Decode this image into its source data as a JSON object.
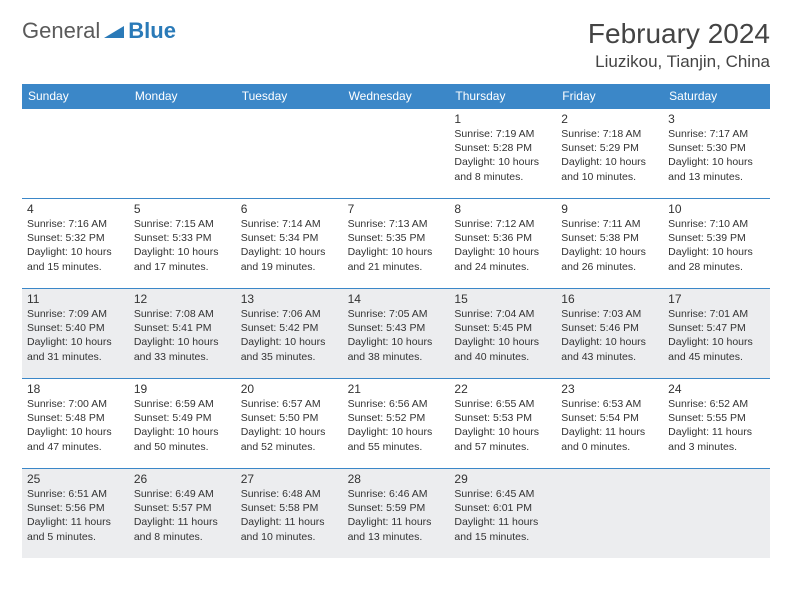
{
  "brand": {
    "part1": "General",
    "part2": "Blue"
  },
  "title": {
    "monthYear": "February 2024",
    "location": "Liuzikou, Tianjin, China"
  },
  "colors": {
    "headerBg": "#3b87c8",
    "altRowBg": "#ecedef",
    "text": "#333333",
    "brandGray": "#5a5a5a",
    "brandBlue": "#2a7ab8"
  },
  "weekdays": [
    "Sunday",
    "Monday",
    "Tuesday",
    "Wednesday",
    "Thursday",
    "Friday",
    "Saturday"
  ],
  "grid": {
    "startOffset": 4,
    "rows": 5,
    "cols": 7,
    "altRows": [
      2,
      4
    ]
  },
  "days": [
    {
      "n": 1,
      "sunrise": "7:19 AM",
      "sunset": "5:28 PM",
      "daylight": "10 hours and 8 minutes."
    },
    {
      "n": 2,
      "sunrise": "7:18 AM",
      "sunset": "5:29 PM",
      "daylight": "10 hours and 10 minutes."
    },
    {
      "n": 3,
      "sunrise": "7:17 AM",
      "sunset": "5:30 PM",
      "daylight": "10 hours and 13 minutes."
    },
    {
      "n": 4,
      "sunrise": "7:16 AM",
      "sunset": "5:32 PM",
      "daylight": "10 hours and 15 minutes."
    },
    {
      "n": 5,
      "sunrise": "7:15 AM",
      "sunset": "5:33 PM",
      "daylight": "10 hours and 17 minutes."
    },
    {
      "n": 6,
      "sunrise": "7:14 AM",
      "sunset": "5:34 PM",
      "daylight": "10 hours and 19 minutes."
    },
    {
      "n": 7,
      "sunrise": "7:13 AM",
      "sunset": "5:35 PM",
      "daylight": "10 hours and 21 minutes."
    },
    {
      "n": 8,
      "sunrise": "7:12 AM",
      "sunset": "5:36 PM",
      "daylight": "10 hours and 24 minutes."
    },
    {
      "n": 9,
      "sunrise": "7:11 AM",
      "sunset": "5:38 PM",
      "daylight": "10 hours and 26 minutes."
    },
    {
      "n": 10,
      "sunrise": "7:10 AM",
      "sunset": "5:39 PM",
      "daylight": "10 hours and 28 minutes."
    },
    {
      "n": 11,
      "sunrise": "7:09 AM",
      "sunset": "5:40 PM",
      "daylight": "10 hours and 31 minutes."
    },
    {
      "n": 12,
      "sunrise": "7:08 AM",
      "sunset": "5:41 PM",
      "daylight": "10 hours and 33 minutes."
    },
    {
      "n": 13,
      "sunrise": "7:06 AM",
      "sunset": "5:42 PM",
      "daylight": "10 hours and 35 minutes."
    },
    {
      "n": 14,
      "sunrise": "7:05 AM",
      "sunset": "5:43 PM",
      "daylight": "10 hours and 38 minutes."
    },
    {
      "n": 15,
      "sunrise": "7:04 AM",
      "sunset": "5:45 PM",
      "daylight": "10 hours and 40 minutes."
    },
    {
      "n": 16,
      "sunrise": "7:03 AM",
      "sunset": "5:46 PM",
      "daylight": "10 hours and 43 minutes."
    },
    {
      "n": 17,
      "sunrise": "7:01 AM",
      "sunset": "5:47 PM",
      "daylight": "10 hours and 45 minutes."
    },
    {
      "n": 18,
      "sunrise": "7:00 AM",
      "sunset": "5:48 PM",
      "daylight": "10 hours and 47 minutes."
    },
    {
      "n": 19,
      "sunrise": "6:59 AM",
      "sunset": "5:49 PM",
      "daylight": "10 hours and 50 minutes."
    },
    {
      "n": 20,
      "sunrise": "6:57 AM",
      "sunset": "5:50 PM",
      "daylight": "10 hours and 52 minutes."
    },
    {
      "n": 21,
      "sunrise": "6:56 AM",
      "sunset": "5:52 PM",
      "daylight": "10 hours and 55 minutes."
    },
    {
      "n": 22,
      "sunrise": "6:55 AM",
      "sunset": "5:53 PM",
      "daylight": "10 hours and 57 minutes."
    },
    {
      "n": 23,
      "sunrise": "6:53 AM",
      "sunset": "5:54 PM",
      "daylight": "11 hours and 0 minutes."
    },
    {
      "n": 24,
      "sunrise": "6:52 AM",
      "sunset": "5:55 PM",
      "daylight": "11 hours and 3 minutes."
    },
    {
      "n": 25,
      "sunrise": "6:51 AM",
      "sunset": "5:56 PM",
      "daylight": "11 hours and 5 minutes."
    },
    {
      "n": 26,
      "sunrise": "6:49 AM",
      "sunset": "5:57 PM",
      "daylight": "11 hours and 8 minutes."
    },
    {
      "n": 27,
      "sunrise": "6:48 AM",
      "sunset": "5:58 PM",
      "daylight": "11 hours and 10 minutes."
    },
    {
      "n": 28,
      "sunrise": "6:46 AM",
      "sunset": "5:59 PM",
      "daylight": "11 hours and 13 minutes."
    },
    {
      "n": 29,
      "sunrise": "6:45 AM",
      "sunset": "6:01 PM",
      "daylight": "11 hours and 15 minutes."
    }
  ],
  "labels": {
    "sunrise": "Sunrise:",
    "sunset": "Sunset:",
    "daylight": "Daylight:"
  }
}
